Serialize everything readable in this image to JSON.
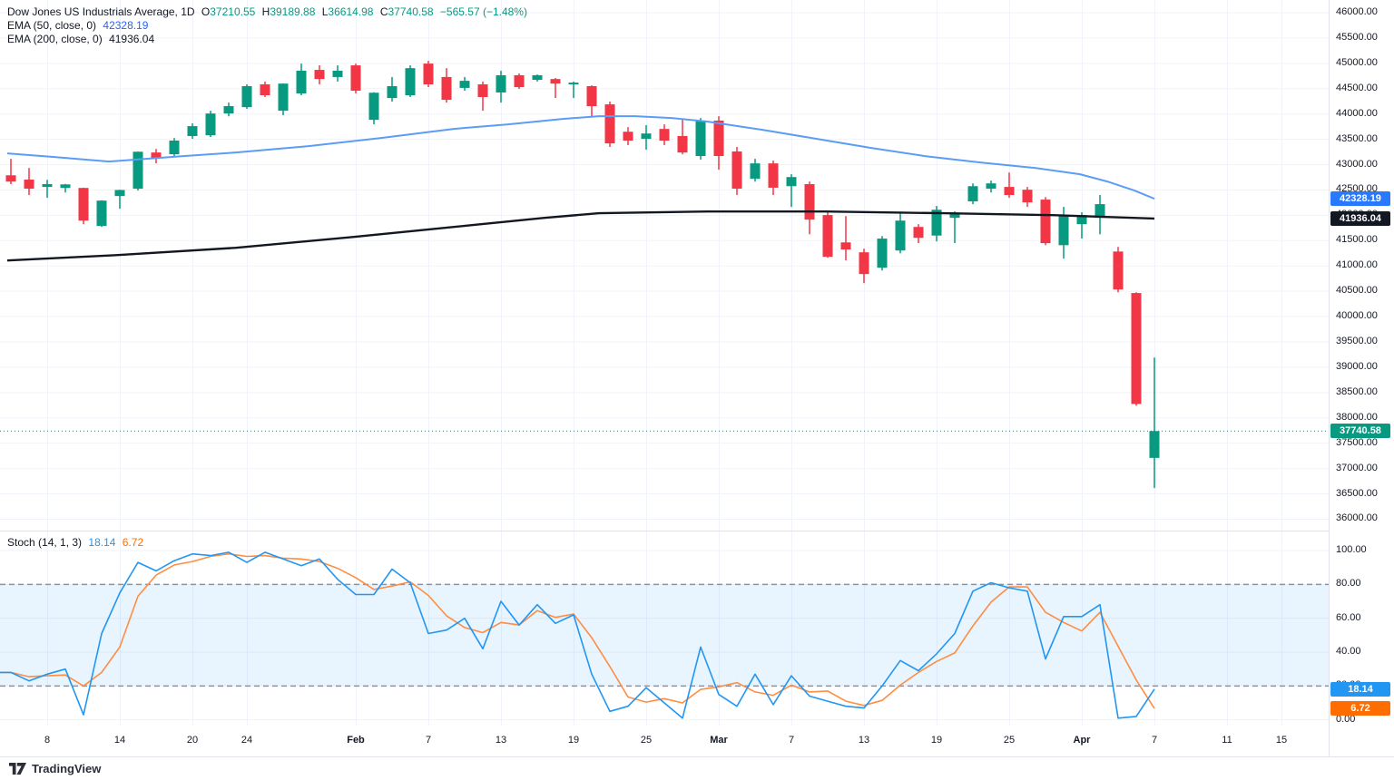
{
  "legend": {
    "symbol_title": "Dow Jones US Industrials Average, 1D",
    "o_label": "O",
    "o": "37210.55",
    "h_label": "H",
    "h": "39189.88",
    "l_label": "L",
    "l": "36614.98",
    "c_label": "C",
    "c": "37740.58",
    "change": "−565.57 (−1.48%)",
    "ema50_label": "EMA (50, close, 0)",
    "ema50_value": "42328.19",
    "ema200_label": "EMA (200, close, 0)",
    "ema200_value": "41936.04",
    "stoch_label": "Stoch (14, 1, 3)",
    "stoch_k": "18.14",
    "stoch_d": "6.72"
  },
  "footer": {
    "brand": "TradingView"
  },
  "colors": {
    "up": "#089981",
    "down": "#f23645",
    "ema50": "#5b9cf6",
    "ema200": "#131722",
    "k_line": "#2196f3",
    "d_line": "#ff8d42",
    "band_fill": "rgba(33,150,243,0.10)",
    "dashed": "#787b86",
    "grid": "#f0f3fa",
    "separator": "#e0e3eb",
    "badge_ema50": "#2979ff",
    "badge_ema200": "#131722",
    "badge_close": "#089981",
    "badge_k": "#2196f3",
    "badge_d": "#ff6d00",
    "close_dotted": "#089981"
  },
  "axis": {
    "price_labels": [
      "46000.00",
      "45500.00",
      "45000.00",
      "44500.00",
      "44000.00",
      "43500.00",
      "43000.00",
      "42500.00",
      "42000.00",
      "41500.00",
      "41000.00",
      "40500.00",
      "40000.00",
      "39500.00",
      "39000.00",
      "38500.00",
      "38000.00",
      "37500.00",
      "37000.00",
      "36500.00",
      "36000.00"
    ],
    "stoch_labels": [
      "100.00",
      "80.00",
      "60.00",
      "40.00",
      "20.00",
      "0.00"
    ],
    "time_labels": [
      {
        "t": "8",
        "i": 2,
        "m": false
      },
      {
        "t": "14",
        "i": 6,
        "m": false
      },
      {
        "t": "20",
        "i": 10,
        "m": false
      },
      {
        "t": "24",
        "i": 13,
        "m": false
      },
      {
        "t": "Feb",
        "i": 19,
        "m": true
      },
      {
        "t": "7",
        "i": 23,
        "m": false
      },
      {
        "t": "13",
        "i": 27,
        "m": false
      },
      {
        "t": "19",
        "i": 31,
        "m": false
      },
      {
        "t": "25",
        "i": 35,
        "m": false
      },
      {
        "t": "Mar",
        "i": 39,
        "m": true
      },
      {
        "t": "7",
        "i": 43,
        "m": false
      },
      {
        "t": "13",
        "i": 47,
        "m": false
      },
      {
        "t": "19",
        "i": 51,
        "m": false
      },
      {
        "t": "25",
        "i": 55,
        "m": false
      },
      {
        "t": "Apr",
        "i": 59,
        "m": true
      },
      {
        "t": "7",
        "i": 63,
        "m": false
      },
      {
        "t": "11",
        "i": 67,
        "m": false
      },
      {
        "t": "15",
        "i": 70,
        "m": false
      }
    ],
    "price_badges": [
      {
        "text": "42328.19",
        "price": 42328.19,
        "color": "badge_ema50"
      },
      {
        "text": "41936.04",
        "price": 41936.04,
        "color": "badge_ema200"
      },
      {
        "text": "37740.58",
        "price": 37740.58,
        "color": "badge_close"
      }
    ],
    "stoch_badges": [
      {
        "text": "18.14",
        "value": 18.14,
        "color": "badge_k"
      },
      {
        "text": "6.72",
        "value": 6.72,
        "color": "badge_d"
      }
    ]
  },
  "chart_data": {
    "type": "candlestick",
    "title": "Dow Jones US Industrials Average",
    "timeframe": "1D",
    "price_axis_range": [
      36000,
      46000
    ],
    "stoch_axis_range": [
      0,
      100
    ],
    "overbought": 80,
    "oversold": 20,
    "close_line_price": 37740.58,
    "candle_columns": [
      "date",
      "open",
      "high",
      "low",
      "close"
    ],
    "candles": [
      [
        "Jan 6",
        42790,
        43115,
        42615,
        42665
      ],
      [
        "Jan 7",
        42705,
        42935,
        42400,
        42525
      ],
      [
        "Jan 8",
        42560,
        42700,
        42345,
        42615
      ],
      [
        "Jan 9",
        42540,
        42620,
        42450,
        42610
      ],
      [
        "Jan 10",
        42540,
        42545,
        41825,
        41895
      ],
      [
        "Jan 13",
        41790,
        42295,
        41770,
        42290
      ],
      [
        "Jan 14",
        42380,
        42505,
        42130,
        42500
      ],
      [
        "Jan 15",
        42525,
        43260,
        42490,
        43255
      ],
      [
        "Jan 16",
        43240,
        43310,
        43025,
        43135
      ],
      [
        "Jan 17",
        43205,
        43525,
        43170,
        43475
      ],
      [
        "Jan 21",
        43565,
        43815,
        43510,
        43760
      ],
      [
        "Jan 22",
        43580,
        44065,
        43545,
        44010
      ],
      [
        "Jan 23",
        44010,
        44225,
        43955,
        44155
      ],
      [
        "Jan 24",
        44135,
        44585,
        44100,
        44550
      ],
      [
        "Jan 27",
        44585,
        44640,
        44335,
        44370
      ],
      [
        "Jan 28",
        44065,
        44605,
        43975,
        44600
      ],
      [
        "Jan 29",
        44405,
        44995,
        44370,
        44855
      ],
      [
        "Jan 30",
        44870,
        44960,
        44585,
        44690
      ],
      [
        "Jan 31",
        44730,
        44960,
        44640,
        44855
      ],
      [
        "Feb 3",
        44960,
        44995,
        44405,
        44460
      ],
      [
        "Feb 4",
        43885,
        44430,
        43795,
        44420
      ],
      [
        "Feb 5",
        44315,
        44730,
        44245,
        44550
      ],
      [
        "Feb 6",
        44370,
        44960,
        44335,
        44905
      ],
      [
        "Feb 7",
        44995,
        45050,
        44530,
        44585
      ],
      [
        "Feb 10",
        44730,
        44905,
        44225,
        44280
      ],
      [
        "Feb 11",
        44515,
        44730,
        44460,
        44655
      ],
      [
        "Feb 12",
        44585,
        44640,
        44065,
        44335
      ],
      [
        "Feb 13",
        44425,
        44855,
        44225,
        44765
      ],
      [
        "Feb 14",
        44765,
        44800,
        44495,
        44530
      ],
      [
        "Feb 18",
        44675,
        44780,
        44640,
        44765
      ],
      [
        "Feb 19",
        44690,
        44710,
        44315,
        44600
      ],
      [
        "Feb 20",
        44585,
        44640,
        44315,
        44620
      ],
      [
        "Feb 21",
        44550,
        44565,
        43955,
        44155
      ],
      [
        "Feb 24",
        44190,
        44245,
        43350,
        43420
      ],
      [
        "Feb 25",
        43650,
        43740,
        43385,
        43475
      ],
      [
        "Feb 26",
        43510,
        43780,
        43295,
        43615
      ],
      [
        "Feb 27",
        43705,
        43795,
        43385,
        43475
      ],
      [
        "Feb 28",
        43565,
        43885,
        43205,
        43240
      ],
      [
        "Mar 3",
        43170,
        43920,
        43100,
        43870
      ],
      [
        "Mar 4",
        43870,
        43955,
        42900,
        43170
      ],
      [
        "Mar 5",
        43260,
        43350,
        42400,
        42525
      ],
      [
        "Mar 6",
        42720,
        43115,
        42665,
        43025
      ],
      [
        "Mar 7",
        43025,
        43080,
        42400,
        42545
      ],
      [
        "Mar 10",
        42575,
        42810,
        42165,
        42755
      ],
      [
        "Mar 11",
        42615,
        42665,
        41625,
        41915
      ],
      [
        "Mar 12",
        42005,
        42075,
        41160,
        41180
      ],
      [
        "Mar 13",
        41465,
        41985,
        41110,
        41325
      ],
      [
        "Mar 14",
        41270,
        41340,
        40660,
        40840
      ],
      [
        "Mar 17",
        40965,
        41590,
        40910,
        41540
      ],
      [
        "Mar 18",
        41305,
        42075,
        41250,
        41895
      ],
      [
        "Mar 19",
        41770,
        41825,
        41450,
        41555
      ],
      [
        "Mar 20",
        41600,
        42185,
        41485,
        42110
      ],
      [
        "Mar 21",
        41950,
        42080,
        41450,
        42040
      ],
      [
        "Mar 24",
        42275,
        42630,
        42220,
        42575
      ],
      [
        "Mar 25",
        42525,
        42685,
        42450,
        42630
      ],
      [
        "Mar 26",
        42560,
        42845,
        42345,
        42400
      ],
      [
        "Mar 27",
        42505,
        42560,
        42165,
        42255
      ],
      [
        "Mar 28",
        42310,
        42360,
        41410,
        41450
      ],
      [
        "Mar 31",
        41410,
        42165,
        41145,
        41985
      ],
      [
        "Apr 1",
        41825,
        42060,
        41540,
        42005
      ],
      [
        "Apr 2",
        41950,
        42400,
        41625,
        42220
      ],
      [
        "Apr 3",
        41285,
        41375,
        40480,
        40535
      ],
      [
        "Apr 4",
        40465,
        40480,
        38240,
        38275
      ],
      [
        "Apr 7",
        37210.55,
        39189.88,
        36614.98,
        37740.58
      ]
    ],
    "ema50_points": [
      [
        -0.2,
        43222
      ],
      [
        2.4,
        43151
      ],
      [
        5.4,
        43061
      ],
      [
        9.4,
        43168
      ],
      [
        12.4,
        43240
      ],
      [
        16.4,
        43366
      ],
      [
        20.4,
        43527
      ],
      [
        24.4,
        43706
      ],
      [
        27.4,
        43796
      ],
      [
        30.4,
        43903
      ],
      [
        32.4,
        43957
      ],
      [
        34.4,
        43957
      ],
      [
        36.4,
        43921
      ],
      [
        38.4,
        43849
      ],
      [
        41.4,
        43688
      ],
      [
        44.4,
        43509
      ],
      [
        47.4,
        43330
      ],
      [
        50.4,
        43168
      ],
      [
        53.4,
        43043
      ],
      [
        56.4,
        42936
      ],
      [
        58.9,
        42810
      ],
      [
        60.4,
        42667
      ],
      [
        61.9,
        42488
      ],
      [
        63,
        42328.19
      ]
    ],
    "ema200_points": [
      [
        -0.2,
        41108
      ],
      [
        5.9,
        41215
      ],
      [
        12.4,
        41359
      ],
      [
        18.9,
        41574
      ],
      [
        25.4,
        41807
      ],
      [
        29.4,
        41950
      ],
      [
        32.4,
        42040
      ],
      [
        38.4,
        42075
      ],
      [
        44.9,
        42075
      ],
      [
        51.4,
        42040
      ],
      [
        57.4,
        42004
      ],
      [
        63,
        41936.04
      ]
    ],
    "stoch_k": [
      28,
      23,
      27,
      30,
      3,
      51,
      75,
      93,
      88,
      94,
      98,
      97,
      99,
      93,
      99,
      95,
      91,
      95,
      83,
      74,
      74,
      89,
      81,
      51,
      53,
      60,
      42,
      70,
      56,
      68,
      57,
      62,
      27,
      5,
      8,
      19,
      10,
      1,
      43,
      15,
      8,
      27,
      9,
      26,
      14,
      11,
      8,
      7,
      20,
      35,
      29,
      39,
      51,
      76,
      81,
      78,
      76,
      36,
      61,
      61,
      68,
      1,
      2,
      18.14
    ],
    "stoch_d": [
      28,
      25.5,
      26,
      26.5,
      20,
      28,
      43,
      73,
      85.5,
      91.5,
      93.5,
      96.5,
      98,
      96.5,
      97,
      95.5,
      95,
      93.5,
      89.5,
      84,
      77,
      79,
      81.5,
      73.5,
      61.5,
      54.5,
      51.5,
      57.5,
      56,
      64.5,
      60.5,
      62.5,
      48.5,
      31.5,
      13.5,
      10.5,
      12.5,
      10,
      18,
      19.5,
      22,
      16.5,
      14.5,
      20.5,
      16.5,
      17,
      11,
      8.5,
      11.5,
      20.5,
      28,
      34.5,
      39.5,
      55.5,
      69.5,
      78.5,
      78.5,
      63.5,
      57.5,
      52.5,
      63.5,
      43.5,
      23.5,
      6.72
    ]
  }
}
